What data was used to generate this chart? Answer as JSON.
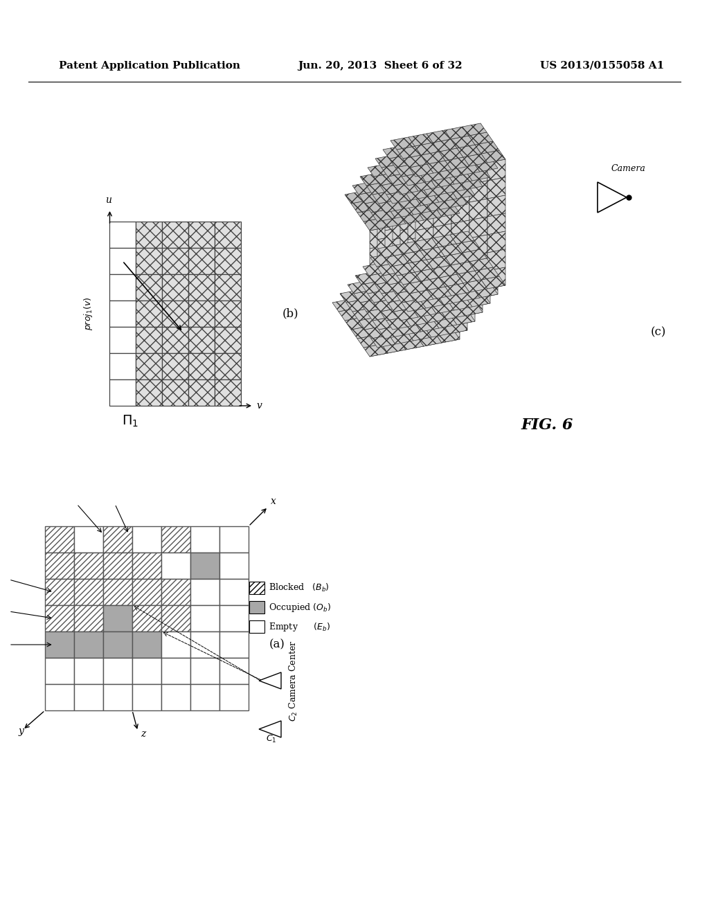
{
  "header_left": "Patent Application Publication",
  "header_mid": "Jun. 20, 2013  Sheet 6 of 32",
  "header_right": "US 2013/0155058 A1",
  "fig_label": "FIG. 6",
  "bg_color": "#ffffff",
  "header_fontsize": 11,
  "subfig_b_label": "(b)",
  "subfig_c_label": "(c)",
  "subfig_a_label": "(a)"
}
